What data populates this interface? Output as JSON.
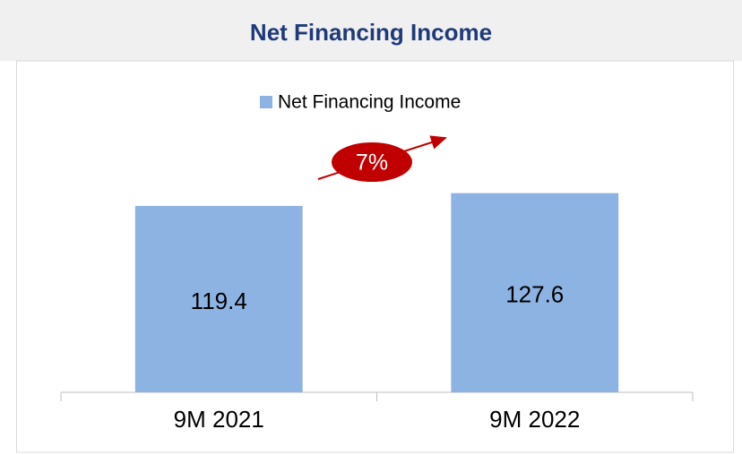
{
  "chart_data": {
    "type": "bar",
    "title": "Net Financing Income",
    "categories": [
      "9M 2021",
      "9M 2022"
    ],
    "series": [
      {
        "name": "Net Financing Income",
        "color": "#8db3e2",
        "values": [
          119.4,
          127.6
        ]
      }
    ],
    "ylim": [
      0,
      140
    ],
    "legend": "top",
    "annotation": "7%",
    "annotation_color": "#c00000"
  }
}
